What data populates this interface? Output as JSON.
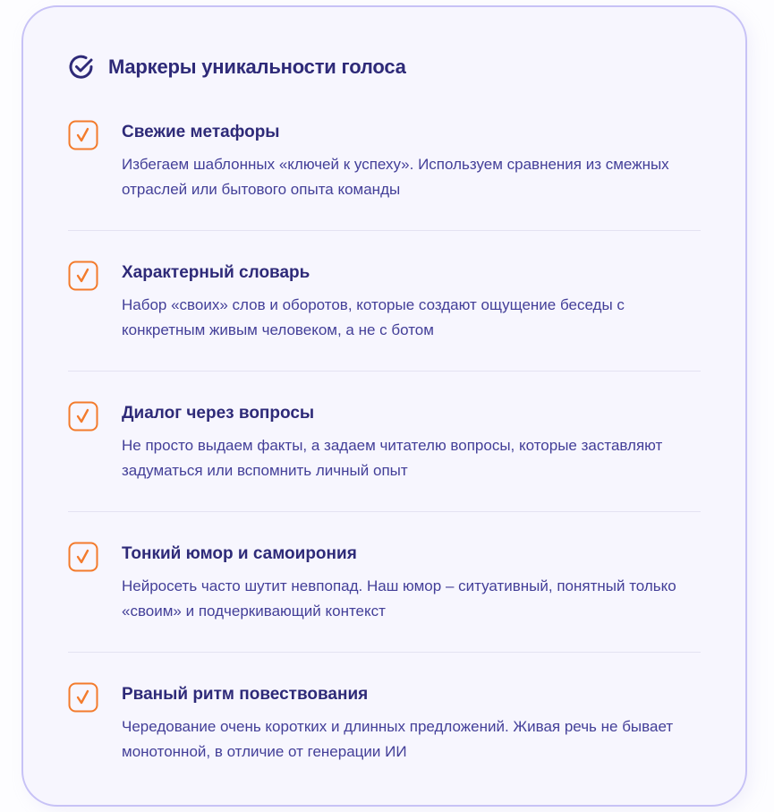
{
  "colors": {
    "accent": "#f37b2c",
    "heading": "#2e2a78",
    "text": "#433f98",
    "border": "#c7c2f6",
    "background": "#f7f6fe"
  },
  "header": {
    "icon": "check-circle-icon",
    "title": "Маркеры уникальности голоса"
  },
  "items": [
    {
      "icon": "checkbox-checked-icon",
      "title": "Свежие метафоры",
      "description": "Избегаем шаблонных «ключей к успеху». Используем сравнения из смежных отраслей или бытового опыта команды"
    },
    {
      "icon": "checkbox-checked-icon",
      "title": "Характерный словарь",
      "description": "Набор «своих» слов и оборотов, которые создают ощущение беседы с конкретным живым человеком, а не с ботом"
    },
    {
      "icon": "checkbox-checked-icon",
      "title": "Диалог через вопросы",
      "description": "Не просто выдаем факты, а задаем читателю вопросы, которые заставляют задуматься или вспомнить личный опыт"
    },
    {
      "icon": "checkbox-checked-icon",
      "title": "Тонкий юмор и самоирония",
      "description": "Нейросеть часто шутит невпопад. Наш юмор – ситуативный, понятный только «своим» и подчеркивающий контекст"
    },
    {
      "icon": "checkbox-checked-icon",
      "title": "Рваный ритм повествования",
      "description": "Чередование очень коротких и длинных предложений. Живая речь не бывает монотонной, в отличие от генерации ИИ"
    }
  ]
}
